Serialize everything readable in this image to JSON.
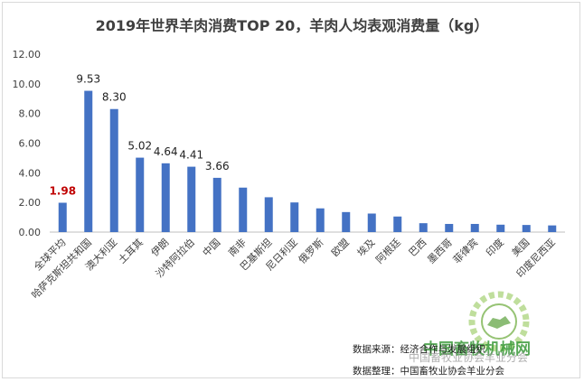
{
  "chart_data": {
    "type": "bar",
    "title": "2019年世界羊肉消费TOP 20，羊肉人均表观消费量（kg）",
    "categories": [
      "全球平均",
      "哈萨克斯坦共和国",
      "澳大利亚",
      "土耳其",
      "伊朗",
      "沙特阿拉伯",
      "中国",
      "南非",
      "巴基斯坦",
      "尼日利亚",
      "俄罗斯",
      "欧盟",
      "埃及",
      "阿根廷",
      "巴西",
      "墨西哥",
      "菲律宾",
      "印度",
      "美国",
      "印度尼西亚"
    ],
    "values": [
      1.98,
      9.53,
      8.3,
      5.02,
      4.64,
      4.41,
      3.66,
      3.0,
      2.35,
      2.0,
      1.6,
      1.35,
      1.25,
      1.05,
      0.6,
      0.55,
      0.55,
      0.5,
      0.48,
      0.45
    ],
    "data_labels": [
      "1.98",
      "9.53",
      "8.30",
      "5.02",
      "4.64",
      "4.41",
      "3.66",
      "",
      "",
      "",
      "",
      "",
      "",
      "",
      "",
      "",
      "",
      "",
      "",
      ""
    ],
    "y_ticks": [
      "0.00",
      "2.00",
      "4.00",
      "6.00",
      "8.00",
      "10.00",
      "12.00"
    ],
    "ylim": [
      0,
      12
    ],
    "grid": false,
    "colors": {
      "bar": "#4472c4",
      "highlight_label": "#c00000",
      "label": "#222222",
      "axis_text": "#404040"
    }
  },
  "footer": {
    "source": "数据来源：经济合作与发展组织",
    "organizer": "数据整理：中国畜牧业协会羊业分会"
  },
  "watermark": {
    "title": "中国畜牧机械网",
    "subtitle": "中国畜牧业协会羊业分会"
  }
}
